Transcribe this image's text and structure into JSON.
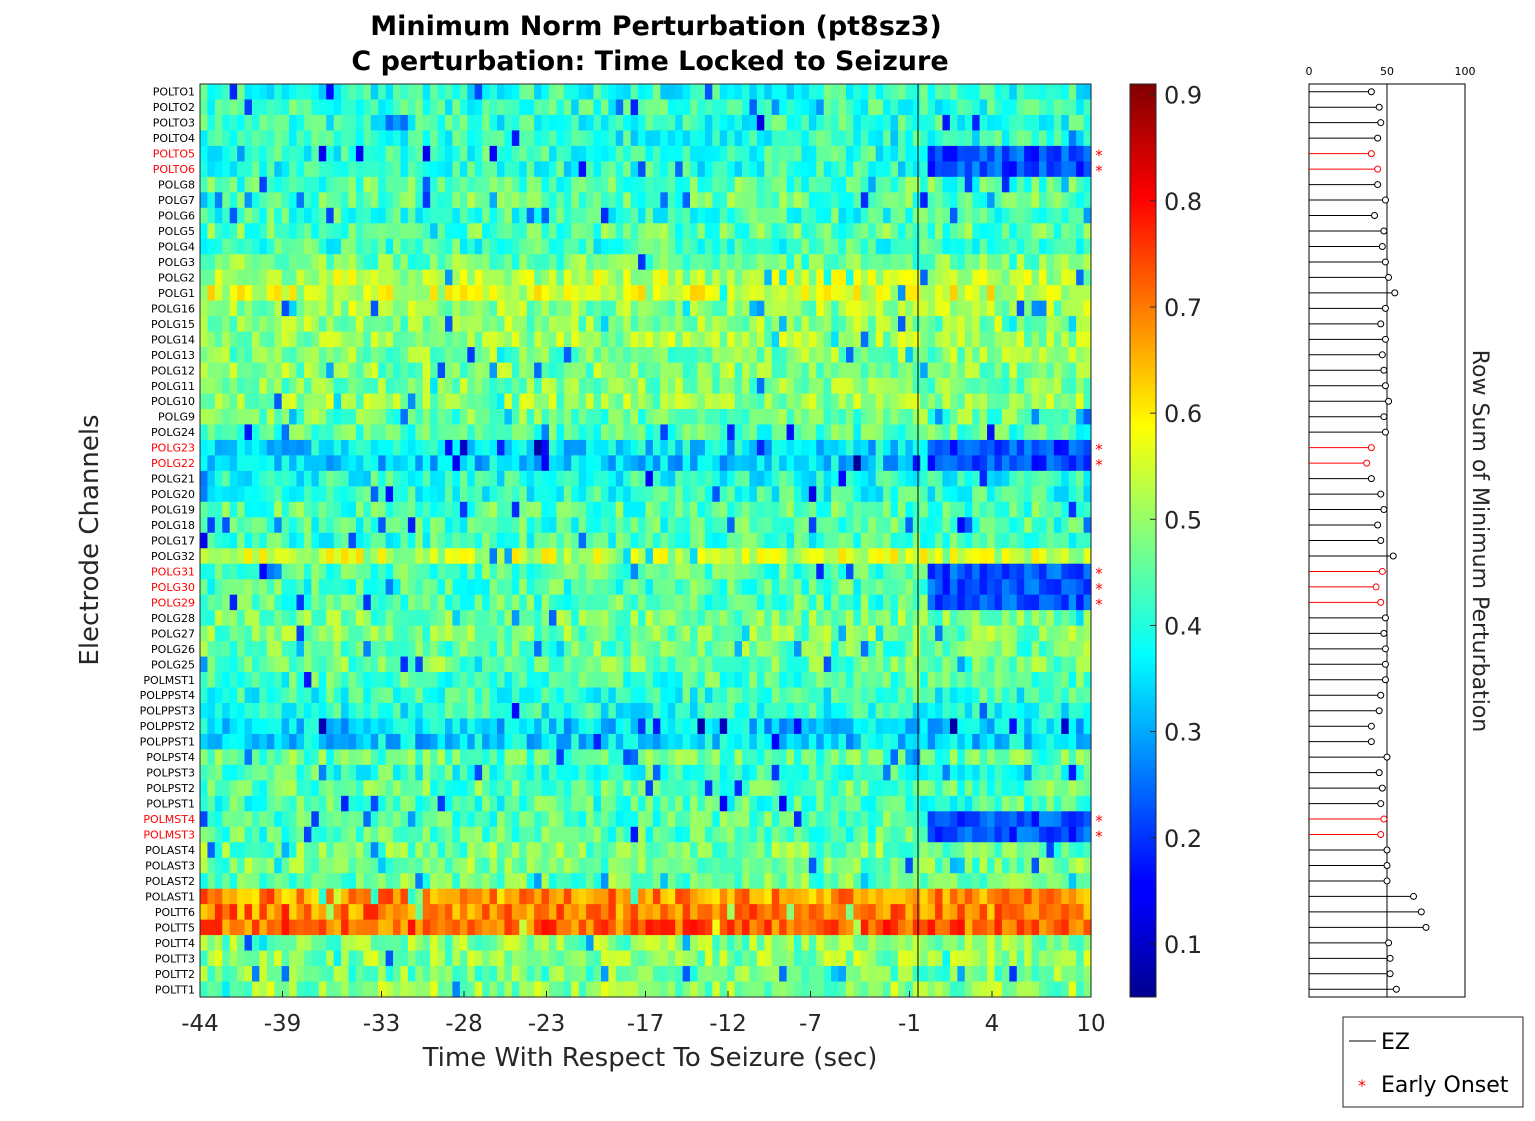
{
  "chart_data": [
    {
      "type": "heatmap",
      "title": "Minimum Norm Perturbation (pt8sz3)",
      "subtitle": "C perturbation:  Time Locked to Seizure",
      "xlabel": "Time With Respect To Seizure (sec)",
      "ylabel": "Electrode Channels",
      "x_ticks": [
        "-44",
        "-39",
        "-33",
        "-28",
        "-23",
        "-17",
        "-12",
        "-7",
        "-1",
        "4",
        "10"
      ],
      "xlim": [
        -44,
        10
      ],
      "seizure_onset_line_at": -1,
      "channels": [
        "POLTO1",
        "POLTO2",
        "POLTO3",
        "POLTO4",
        "POLTO5",
        "POLTO6",
        "POLG8",
        "POLG7",
        "POLG6",
        "POLG5",
        "POLG4",
        "POLG3",
        "POLG2",
        "POLG1",
        "POLG16",
        "POLG15",
        "POLG14",
        "POLG13",
        "POLG12",
        "POLG11",
        "POLG10",
        "POLG9",
        "POLG24",
        "POLG23",
        "POLG22",
        "POLG21",
        "POLG20",
        "POLG19",
        "POLG18",
        "POLG17",
        "POLG32",
        "POLG31",
        "POLG30",
        "POLG29",
        "POLG28",
        "POLG27",
        "POLG26",
        "POLG25",
        "POLMST1",
        "POLPPST4",
        "POLPPST3",
        "POLPPST2",
        "POLPPST1",
        "POLPST4",
        "POLPST3",
        "POLPST2",
        "POLPST1",
        "POLMST4",
        "POLMST3",
        "POLAST4",
        "POLAST3",
        "POLAST2",
        "POLAST1",
        "POLTT6",
        "POLTT5",
        "POLTT4",
        "POLTT3",
        "POLTT2",
        "POLTT1"
      ],
      "ez_channels": [
        "POLTO5",
        "POLTO6",
        "POLG23",
        "POLG22",
        "POLG31",
        "POLG30",
        "POLG29",
        "POLMST4",
        "POLMST3"
      ],
      "early_onset_channels": [
        "POLTO5",
        "POLTO6",
        "POLG23",
        "POLG22",
        "POLG31",
        "POLG30",
        "POLG29",
        "POLMST4",
        "POLMST3"
      ],
      "channel_mean_values": [
        0.4,
        0.41,
        0.41,
        0.4,
        0.41,
        0.4,
        0.44,
        0.45,
        0.42,
        0.45,
        0.42,
        0.46,
        0.52,
        0.55,
        0.5,
        0.49,
        0.5,
        0.48,
        0.48,
        0.48,
        0.49,
        0.46,
        0.44,
        0.35,
        0.34,
        0.4,
        0.41,
        0.44,
        0.43,
        0.42,
        0.54,
        0.44,
        0.43,
        0.44,
        0.47,
        0.47,
        0.46,
        0.46,
        0.43,
        0.41,
        0.4,
        0.34,
        0.34,
        0.45,
        0.42,
        0.45,
        0.43,
        0.44,
        0.44,
        0.47,
        0.47,
        0.46,
        0.68,
        0.7,
        0.72,
        0.48,
        0.49,
        0.47,
        0.49
      ],
      "colorbar": {
        "min": 0.05,
        "max": 0.91,
        "ticks": [
          "0.9",
          "0.8",
          "0.7",
          "0.6",
          "0.5",
          "0.4",
          "0.3",
          "0.2",
          "0.1"
        ],
        "colormap": "jet"
      }
    },
    {
      "type": "stem",
      "ylabel": "Row Sum of Minimum Perturbation",
      "x_ticks": [
        "0",
        "50",
        "100"
      ],
      "xlim": [
        0,
        100
      ],
      "row_sums": [
        40,
        45,
        46,
        44,
        40,
        44,
        44,
        49,
        42,
        48,
        47,
        49,
        51,
        55,
        49,
        46,
        49,
        47,
        48,
        49,
        51,
        48,
        49,
        40,
        37,
        40,
        46,
        48,
        44,
        46,
        54,
        47,
        43,
        46,
        49,
        48,
        49,
        49,
        49,
        46,
        45,
        40,
        40,
        50,
        45,
        47,
        46,
        48,
        46,
        50,
        50,
        50,
        67,
        72,
        75,
        51,
        52,
        52,
        56
      ]
    }
  ],
  "legend": {
    "items": [
      "EZ",
      "Early Onset"
    ]
  },
  "colors": {
    "ez_label": "#ff0000",
    "normal_label": "#000000",
    "axis": "#262626",
    "onset_marker": "#ff0000"
  }
}
